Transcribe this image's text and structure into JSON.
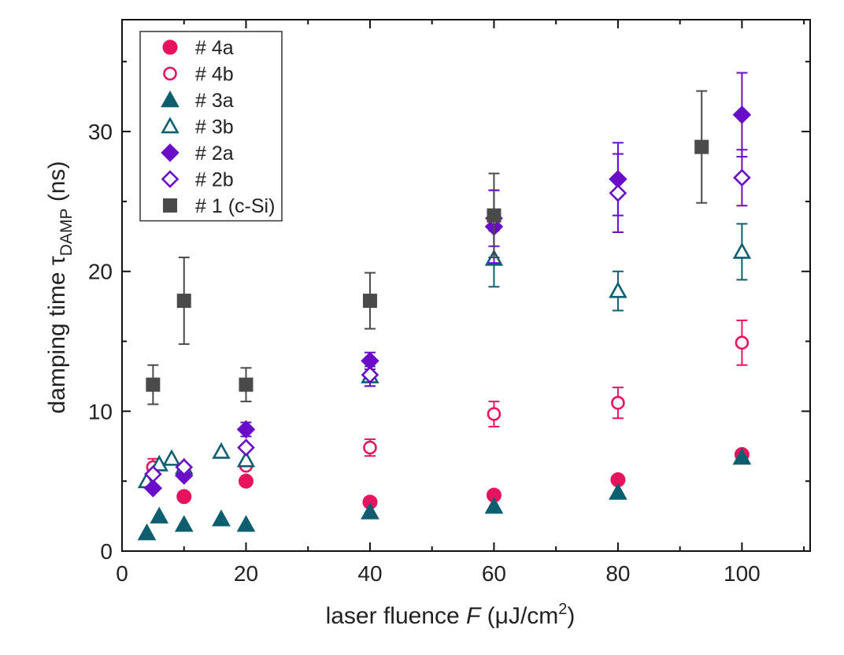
{
  "chart_data": {
    "type": "scatter",
    "title": "",
    "xlabel": "laser fluence F (μJ/cm²)",
    "xlabel_parts": {
      "pre": "laser fluence ",
      "italic": "F",
      "mid": " (μJ/cm",
      "sup": "2",
      "post": ")"
    },
    "ylabel": "damping time τDAMP (ns)",
    "ylabel_parts": {
      "pre": "damping time τ",
      "sub": "DAMP",
      "post": " (ns)"
    },
    "xlim": [
      0,
      111
    ],
    "ylim": [
      0,
      38
    ],
    "xticks": [
      0,
      20,
      40,
      60,
      80,
      100
    ],
    "xticks_minor": [
      10,
      30,
      50,
      70,
      90,
      110
    ],
    "yticks": [
      0,
      10,
      20,
      30
    ],
    "yticks_minor": [
      5,
      15,
      25,
      35
    ],
    "grid": false,
    "legend_position": "top-left",
    "series": [
      {
        "name": "# 4a",
        "marker": "circle",
        "filled": true,
        "color": "#e8135f",
        "points": [
          {
            "x": 10,
            "y": 3.9
          },
          {
            "x": 20,
            "y": 5.0
          },
          {
            "x": 40,
            "y": 3.5
          },
          {
            "x": 60,
            "y": 4.0
          },
          {
            "x": 80,
            "y": 5.1
          },
          {
            "x": 100,
            "y": 6.9
          }
        ]
      },
      {
        "name": "# 4b",
        "marker": "circle",
        "filled": false,
        "color": "#e8135f",
        "points": [
          {
            "x": 5,
            "y": 6.0,
            "err": 0.6
          },
          {
            "x": 10,
            "y": 5.8
          },
          {
            "x": 20,
            "y": 6.1
          },
          {
            "x": 40,
            "y": 7.4,
            "err": 0.6
          },
          {
            "x": 60,
            "y": 9.8,
            "err": 0.9
          },
          {
            "x": 80,
            "y": 10.6,
            "err": 1.1
          },
          {
            "x": 100,
            "y": 14.9,
            "err": 1.6
          }
        ]
      },
      {
        "name": "# 3a",
        "marker": "triangle",
        "filled": true,
        "color": "#0d5f70",
        "points": [
          {
            "x": 4,
            "y": 1.3
          },
          {
            "x": 6,
            "y": 2.5
          },
          {
            "x": 10,
            "y": 1.9
          },
          {
            "x": 16,
            "y": 2.3
          },
          {
            "x": 20,
            "y": 1.9
          },
          {
            "x": 40,
            "y": 2.8
          },
          {
            "x": 60,
            "y": 3.2
          },
          {
            "x": 80,
            "y": 4.2
          },
          {
            "x": 100,
            "y": 6.7
          }
        ]
      },
      {
        "name": "# 3b",
        "marker": "triangle",
        "filled": false,
        "color": "#0d5f70",
        "points": [
          {
            "x": 4,
            "y": 5.0
          },
          {
            "x": 6,
            "y": 6.2
          },
          {
            "x": 8,
            "y": 6.6
          },
          {
            "x": 10,
            "y": 6.0
          },
          {
            "x": 16,
            "y": 7.1
          },
          {
            "x": 20,
            "y": 6.5
          },
          {
            "x": 40,
            "y": 12.5,
            "err": 0.7
          },
          {
            "x": 60,
            "y": 20.9,
            "err": 2.0
          },
          {
            "x": 80,
            "y": 18.6,
            "err": 1.4
          },
          {
            "x": 100,
            "y": 21.4,
            "err": 2.0
          }
        ]
      },
      {
        "name": "# 2a",
        "marker": "diamond",
        "filled": true,
        "color": "#6a0dc8",
        "points": [
          {
            "x": 5,
            "y": 4.5
          },
          {
            "x": 10,
            "y": 5.4
          },
          {
            "x": 20,
            "y": 8.7,
            "err": 0.5
          },
          {
            "x": 40,
            "y": 13.6,
            "err": 0.6
          },
          {
            "x": 60,
            "y": 23.2,
            "err": 2.6
          },
          {
            "x": 80,
            "y": 26.6,
            "err": 2.6
          },
          {
            "x": 100,
            "y": 31.2,
            "err": 3.0
          }
        ]
      },
      {
        "name": "# 2b",
        "marker": "diamond",
        "filled": false,
        "color": "#6a0dc8",
        "points": [
          {
            "x": 5,
            "y": 5.5
          },
          {
            "x": 10,
            "y": 6.0
          },
          {
            "x": 20,
            "y": 7.4
          },
          {
            "x": 40,
            "y": 12.6,
            "err": 0.8
          },
          {
            "x": 60,
            "y": 23.8,
            "err": 2.0
          },
          {
            "x": 80,
            "y": 25.6,
            "err": 2.8
          },
          {
            "x": 100,
            "y": 26.7,
            "err": 2.0
          }
        ]
      },
      {
        "name": "# 1 (c-Si)",
        "marker": "square",
        "filled": true,
        "color": "#4a4a4a",
        "points": [
          {
            "x": 5,
            "y": 11.9,
            "err": 1.4
          },
          {
            "x": 10,
            "y": 17.9,
            "err": 3.1
          },
          {
            "x": 20,
            "y": 11.9,
            "err": 1.2
          },
          {
            "x": 40,
            "y": 17.9,
            "err": 2.0
          },
          {
            "x": 60,
            "y": 24.0,
            "err": 3.0
          },
          {
            "x": 93.5,
            "y": 28.9,
            "err": 4.0
          }
        ]
      }
    ]
  }
}
